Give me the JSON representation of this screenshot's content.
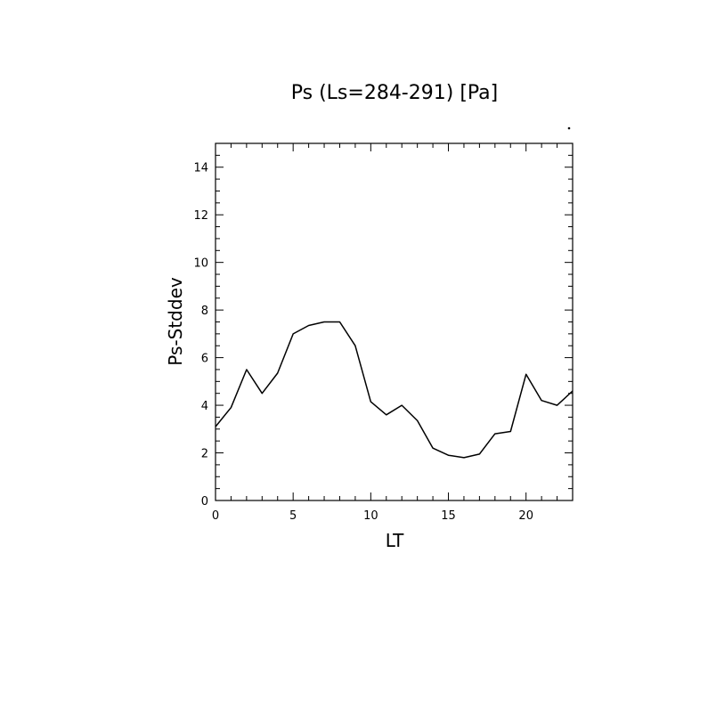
{
  "chart_data": {
    "type": "line",
    "title": "Ps (Ls=284-291) [Pa]",
    "xlabel": "LT",
    "ylabel": "Ps-Stddev",
    "xlim": [
      0,
      23
    ],
    "ylim": [
      0,
      15
    ],
    "xticks": [
      0,
      5,
      10,
      15,
      20
    ],
    "yticks": [
      0,
      2,
      4,
      6,
      8,
      10,
      12,
      14
    ],
    "grid": false,
    "series": [
      {
        "x": [
          0,
          1,
          2,
          3,
          4,
          5,
          6,
          7,
          8,
          9,
          10,
          11,
          12,
          13,
          14,
          15,
          16,
          17,
          18,
          19,
          20,
          21,
          22,
          23
        ],
        "values": [
          3.1,
          3.9,
          5.5,
          4.5,
          5.35,
          7.0,
          7.35,
          7.5,
          7.5,
          6.5,
          4.15,
          3.6,
          4.0,
          3.35,
          2.2,
          1.9,
          1.8,
          1.95,
          2.8,
          2.9,
          5.3,
          4.2,
          4.0,
          4.6
        ]
      }
    ],
    "colors": {
      "line": "#000000",
      "axes": "#000000"
    }
  }
}
